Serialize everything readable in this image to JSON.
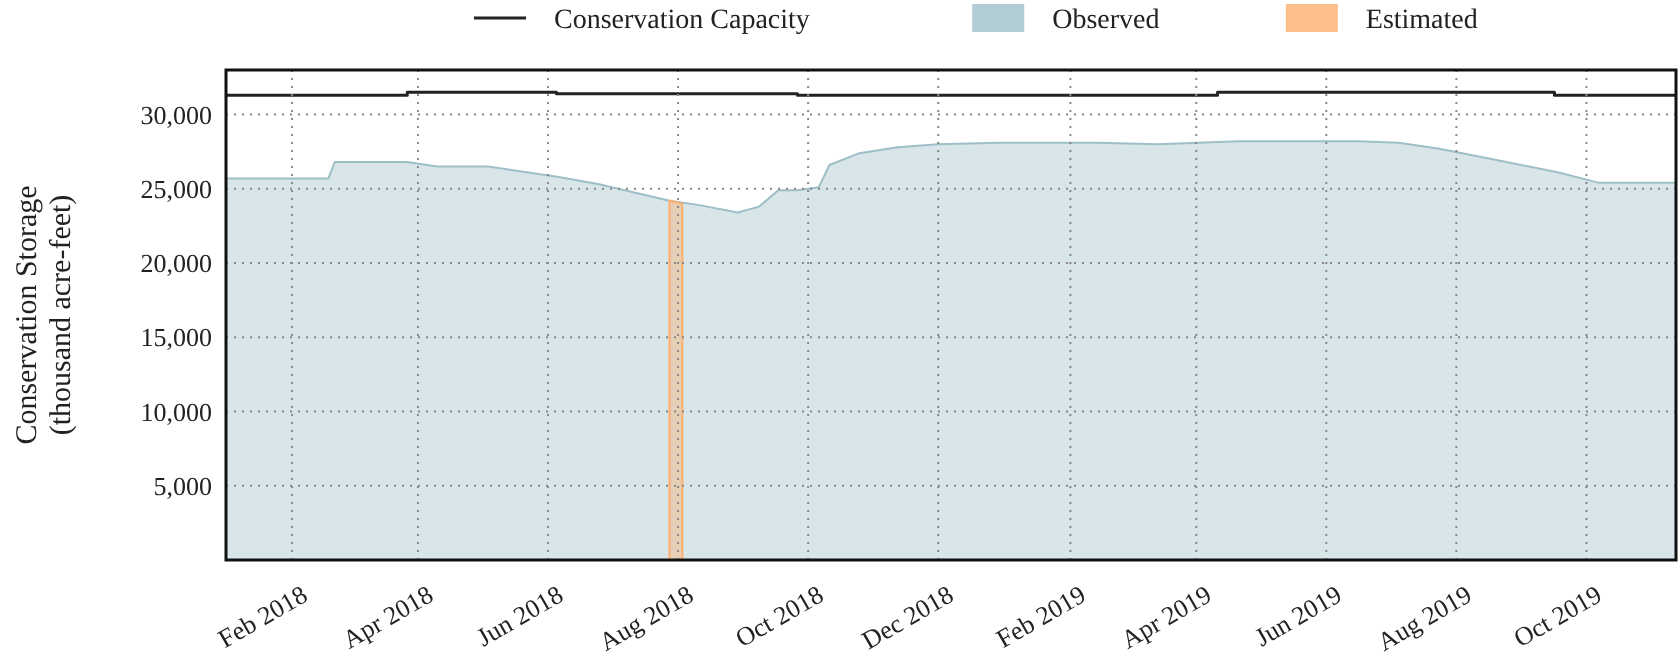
{
  "chart_data": {
    "type": "area",
    "ylabel": "Conservation Storage\n(thousand acre-feet)",
    "xlim": [
      "2018-01-01",
      "2019-11-12"
    ],
    "ylim": [
      0,
      33000
    ],
    "xticks": [
      {
        "value": "2018-02-01",
        "label": "Feb 2018"
      },
      {
        "value": "2018-04-01",
        "label": "Apr 2018"
      },
      {
        "value": "2018-06-01",
        "label": "Jun 2018"
      },
      {
        "value": "2018-08-01",
        "label": "Aug 2018"
      },
      {
        "value": "2018-10-01",
        "label": "Oct 2018"
      },
      {
        "value": "2018-12-01",
        "label": "Dec 2018"
      },
      {
        "value": "2019-02-01",
        "label": "Feb 2019"
      },
      {
        "value": "2019-04-01",
        "label": "Apr 2019"
      },
      {
        "value": "2019-06-01",
        "label": "Jun 2019"
      },
      {
        "value": "2019-08-01",
        "label": "Aug 2019"
      },
      {
        "value": "2019-10-01",
        "label": "Oct 2019"
      }
    ],
    "yticks": [
      {
        "value": 5000,
        "label": "5,000"
      },
      {
        "value": 10000,
        "label": "10,000"
      },
      {
        "value": 15000,
        "label": "15,000"
      },
      {
        "value": 20000,
        "label": "20,000"
      },
      {
        "value": 25000,
        "label": "25,000"
      },
      {
        "value": 30000,
        "label": "30,000"
      }
    ],
    "grid": true,
    "legend": "top",
    "series": [
      {
        "name": "Conservation Capacity",
        "type": "step",
        "color": "#222222",
        "x": [
          "2018-01-01",
          "2018-03-27",
          "2018-06-05",
          "2018-09-26",
          "2019-04-11",
          "2019-09-16",
          "2019-11-12"
        ],
        "values": [
          31300,
          31500,
          31400,
          31300,
          31500,
          31300,
          31300
        ]
      },
      {
        "name": "Observed",
        "type": "area",
        "color": "#9dbfc8",
        "x": [
          "2018-01-01",
          "2018-02-18",
          "2018-02-21",
          "2018-03-27",
          "2018-04-10",
          "2018-05-04",
          "2018-05-18",
          "2018-06-06",
          "2018-06-25",
          "2018-07-13",
          "2018-07-28",
          "2018-08-11",
          "2018-08-29",
          "2018-09-08",
          "2018-09-17",
          "2018-09-26",
          "2018-10-06",
          "2018-10-11",
          "2018-10-25",
          "2018-11-12",
          "2018-12-01",
          "2018-12-29",
          "2019-02-14",
          "2019-03-14",
          "2019-04-02",
          "2019-04-21",
          "2019-05-19",
          "2019-06-16",
          "2019-07-05",
          "2019-07-24",
          "2019-08-21",
          "2019-09-18",
          "2019-10-07",
          "2019-10-26",
          "2019-11-12"
        ],
        "values": [
          25700,
          25700,
          26800,
          26800,
          26500,
          26500,
          26200,
          25800,
          25300,
          24700,
          24200,
          23900,
          23400,
          23800,
          24900,
          24900,
          25100,
          26600,
          27400,
          27800,
          28000,
          28100,
          28100,
          28000,
          28100,
          28200,
          28200,
          28200,
          28100,
          27700,
          26900,
          26100,
          25400,
          25400,
          25400
        ]
      },
      {
        "name": "Estimated",
        "color": "#fdae6b",
        "x": [
          "2018-07-28",
          "2018-07-29",
          "2018-07-30",
          "2018-07-31",
          "2018-08-01",
          "2018-08-02",
          "2018-08-03"
        ],
        "values": [
          24200,
          24200,
          24100,
          24100,
          24100,
          24000,
          24000
        ]
      }
    ]
  }
}
